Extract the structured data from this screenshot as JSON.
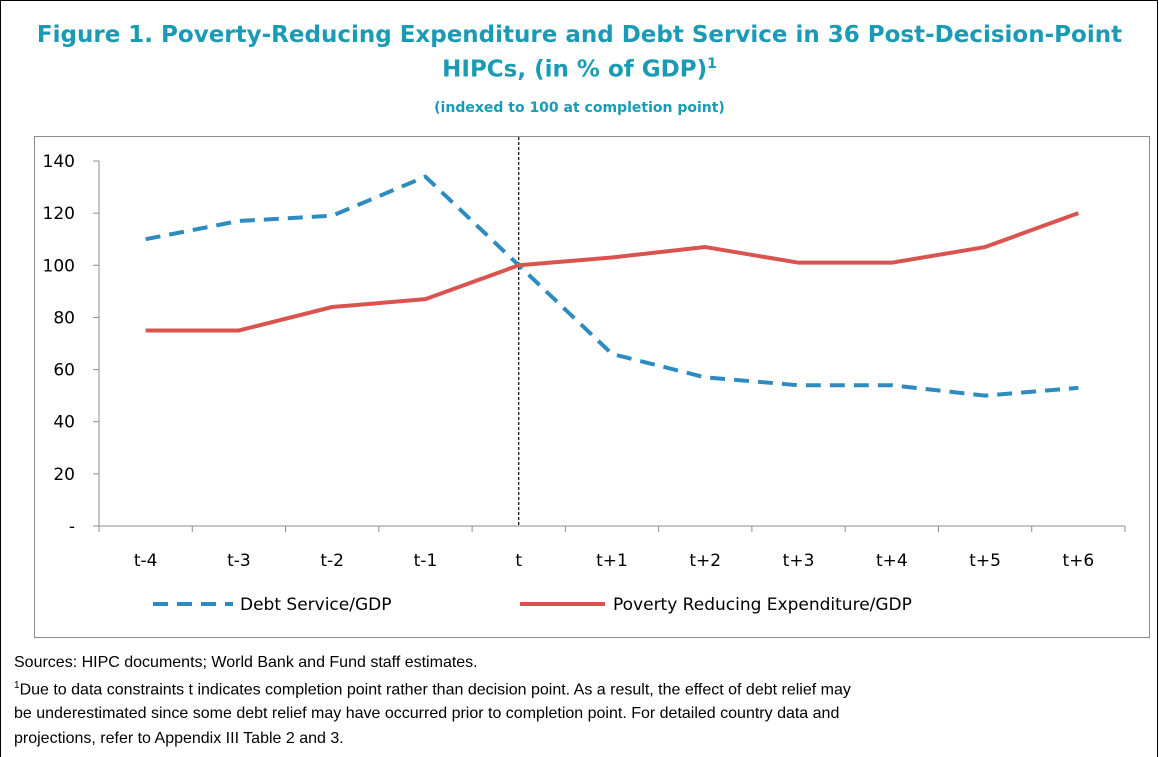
{
  "figure": {
    "title_line1": "Figure 1. Poverty-Reducing Expenditure and Debt Service in 36 Post-Decision-Point",
    "title_line2": "HIPCs, (in % of GDP)",
    "title_sup": "1",
    "subtitle": "(indexed to 100 at completion point)"
  },
  "chart_data": {
    "type": "line",
    "categories": [
      "t-4",
      "t-3",
      "t-2",
      "t-1",
      "t",
      "t+1",
      "t+2",
      "t+3",
      "t+4",
      "t+5",
      "t+6"
    ],
    "y_ticks": [
      "-",
      "20",
      "40",
      "60",
      "80",
      "100",
      "120",
      "140"
    ],
    "ylim": [
      0,
      140
    ],
    "vertical_marker_category": "t",
    "legend_position": "bottom",
    "series": [
      {
        "name": "Debt Service/GDP",
        "color": "#2e8bc0",
        "style": "dashed",
        "values": [
          110,
          117,
          119,
          134,
          100,
          66,
          57,
          54,
          54,
          50,
          53
        ]
      },
      {
        "name": "Poverty Reducing Expenditure/GDP",
        "color": "#d9534f",
        "style": "solid",
        "values": [
          75,
          75,
          84,
          87,
          100,
          103,
          107,
          101,
          101,
          107,
          120
        ]
      }
    ]
  },
  "footer": {
    "sources": "Sources: HIPC documents; World Bank and Fund staff estimates.",
    "note_sup": "1",
    "note_line1": "Due to data constraints t indicates completion point rather than decision point. As a result, the effect of debt relief may",
    "note_line2": "be underestimated since some debt relief may have occurred prior to completion point. For detailed country data and",
    "note_line3": "projections, refer to Appendix III Table 2 and 3."
  }
}
